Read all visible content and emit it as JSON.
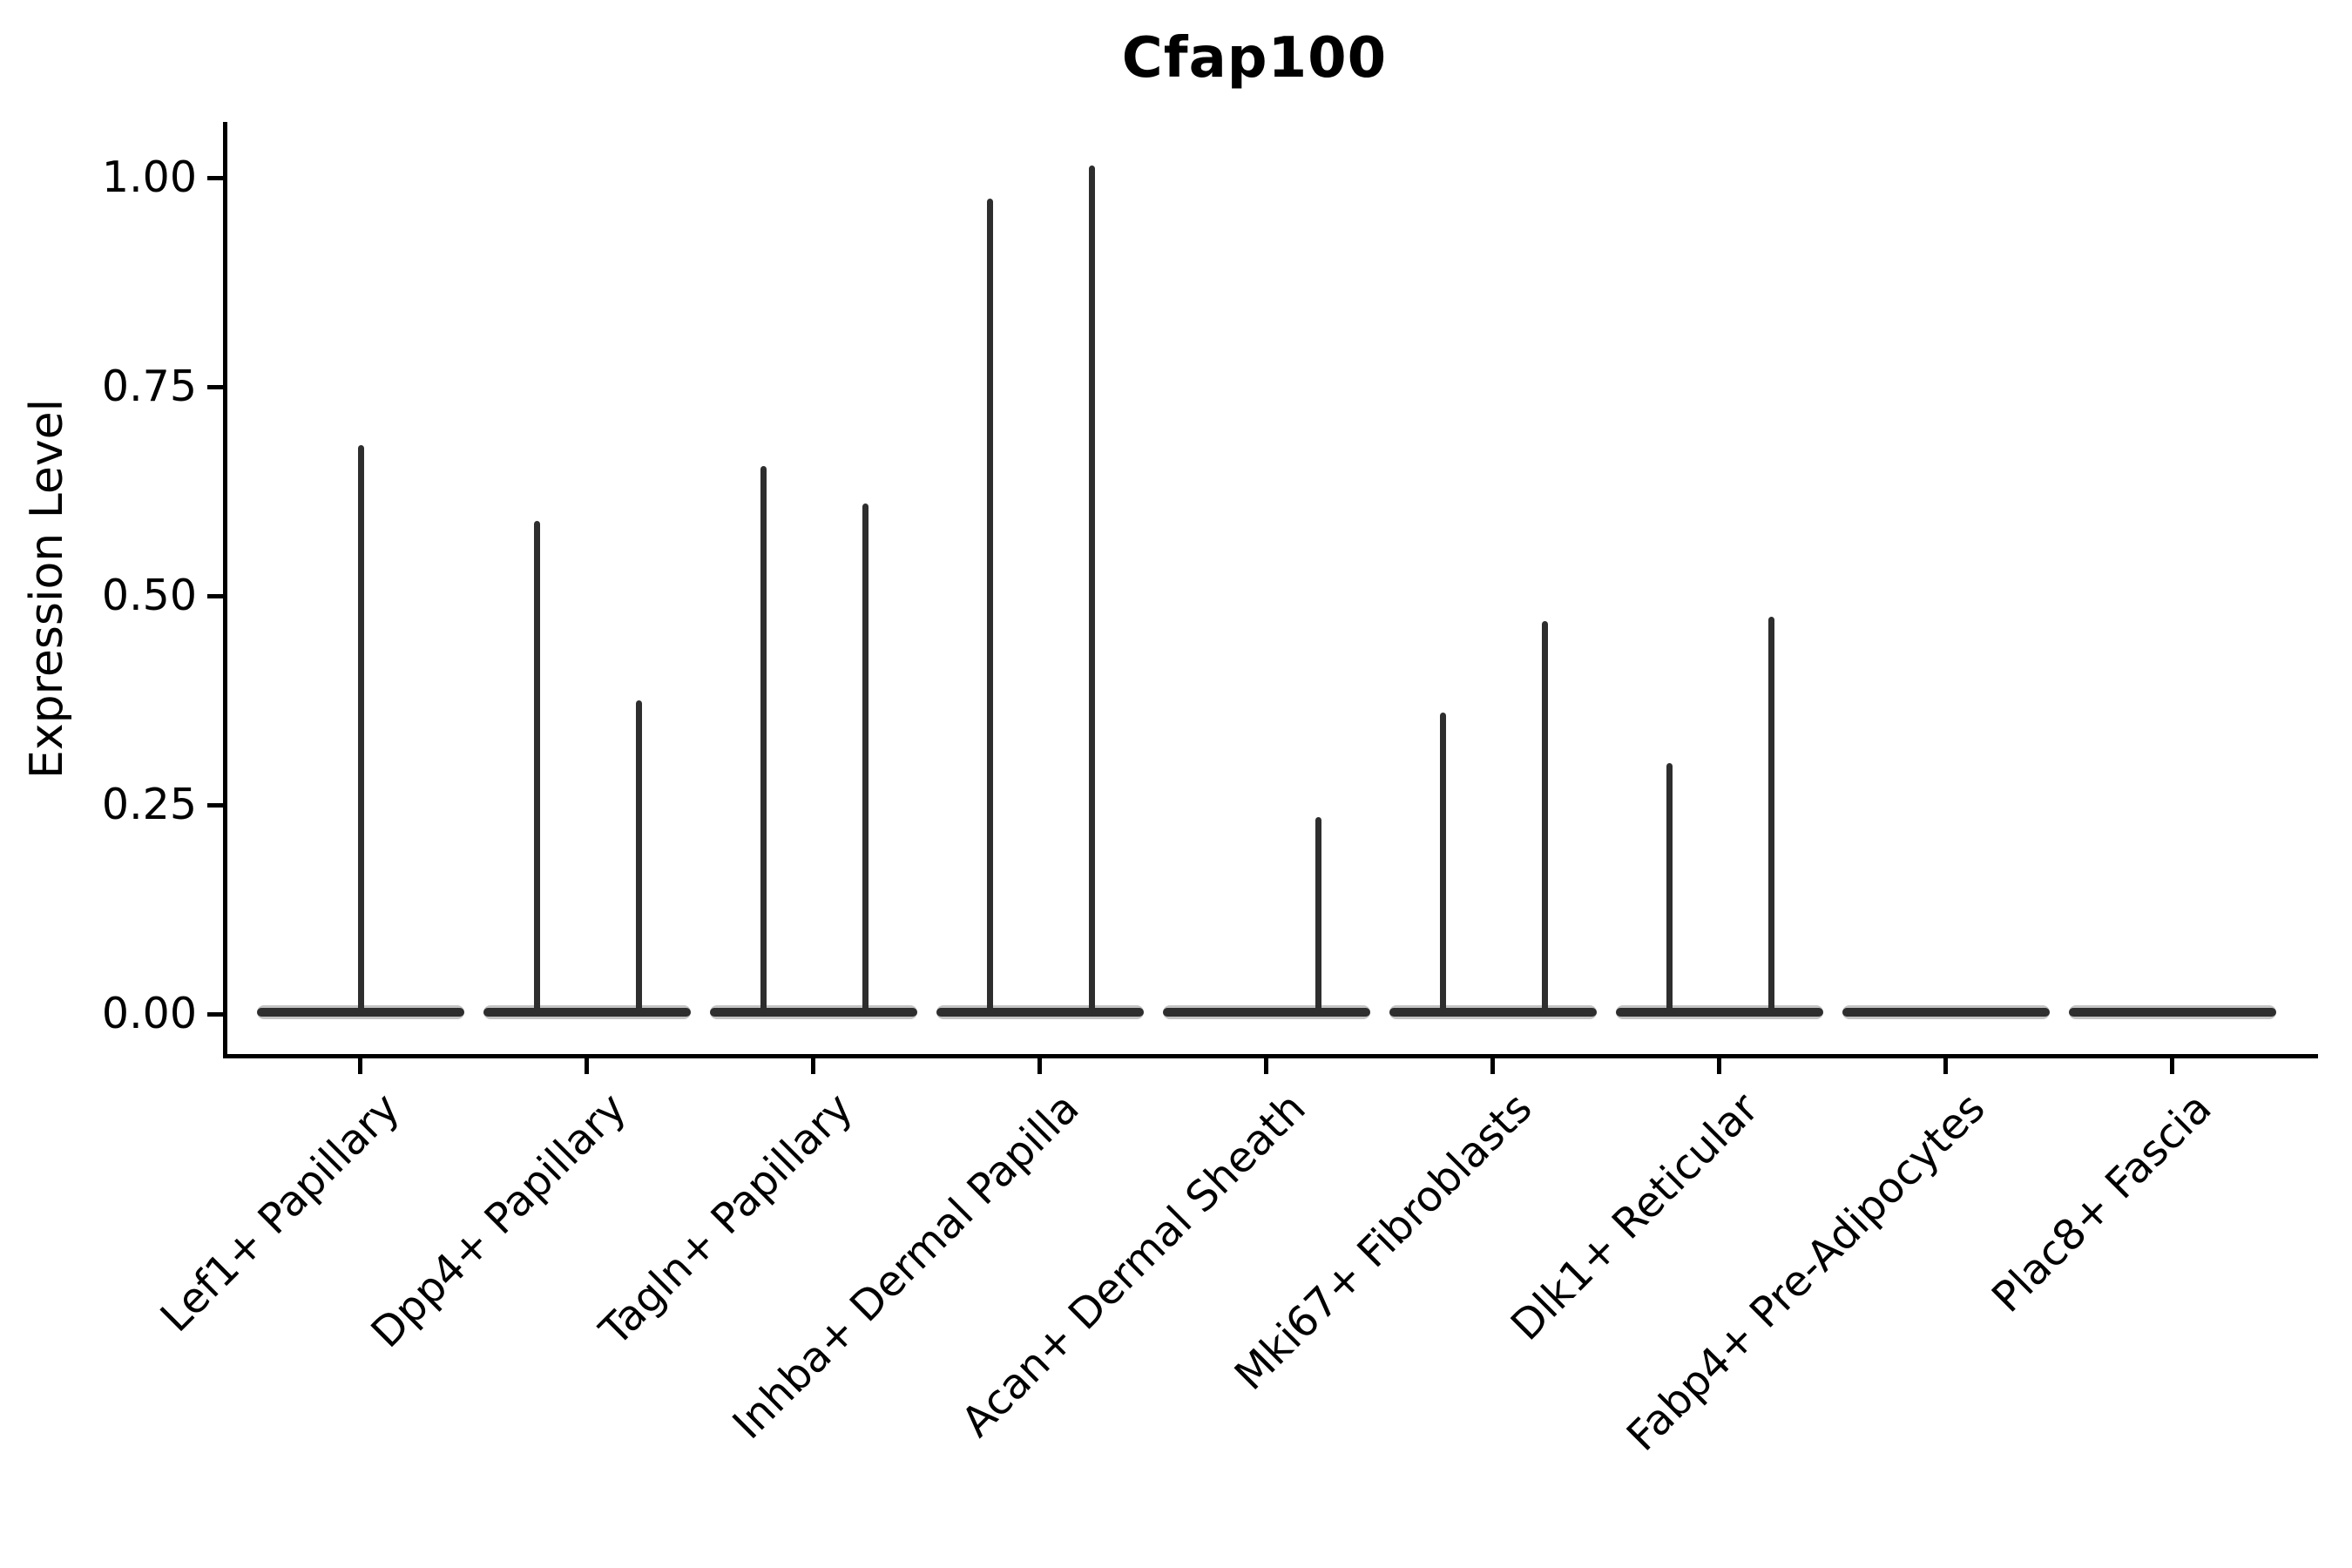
{
  "title": "Cfap100",
  "ylabel": "Expression Level",
  "colors": {
    "violin_line": "#2e2e2e",
    "violin_fill": "#c3c3c3",
    "axis": "#000000",
    "background": "#ffffff"
  },
  "chart_data": {
    "type": "violin",
    "title": "Cfap100",
    "xlabel": "",
    "ylabel": "Expression Level",
    "grid": false,
    "legend": "none",
    "ylim": [
      -0.02,
      1.07
    ],
    "y_ticks": [
      {
        "value": 0.0,
        "label": "0.00"
      },
      {
        "value": 0.25,
        "label": "0.25"
      },
      {
        "value": 0.5,
        "label": "0.50"
      },
      {
        "value": 0.75,
        "label": "0.75"
      },
      {
        "value": 1.0,
        "label": "1.00"
      }
    ],
    "categories": [
      "Lef1+ Papillary",
      "Dpp4+ Papillary",
      "Tagln+ Papillary",
      "Inhba+ Dermal Papilla",
      "Acan+ Dermal Sheath",
      "Mki67+ Fibroblasts",
      "Dlk1+ Reticular",
      "Fabp4+ Pre-Adipocytes",
      "Plac8+ Fascia"
    ],
    "violins": [
      {
        "category": "Lef1+ Papillary",
        "body_at_zero": true,
        "spikes": [
          {
            "side": "center",
            "max": 0.68
          }
        ]
      },
      {
        "category": "Dpp4+ Papillary",
        "body_at_zero": true,
        "spikes": [
          {
            "side": "left",
            "max": 0.59
          },
          {
            "side": "right",
            "max": 0.375
          }
        ]
      },
      {
        "category": "Tagln+ Papillary",
        "body_at_zero": true,
        "spikes": [
          {
            "side": "left",
            "max": 0.655
          },
          {
            "side": "right",
            "max": 0.61
          }
        ]
      },
      {
        "category": "Inhba+ Dermal Papilla",
        "body_at_zero": true,
        "spikes": [
          {
            "side": "left",
            "max": 0.975
          },
          {
            "side": "right",
            "max": 1.015
          }
        ]
      },
      {
        "category": "Acan+ Dermal Sheath",
        "body_at_zero": true,
        "spikes": [
          {
            "side": "right",
            "max": 0.235
          }
        ]
      },
      {
        "category": "Mki67+ Fibroblasts",
        "body_at_zero": true,
        "spikes": [
          {
            "side": "left",
            "max": 0.36
          },
          {
            "side": "right",
            "max": 0.47
          }
        ]
      },
      {
        "category": "Dlk1+ Reticular",
        "body_at_zero": true,
        "spikes": [
          {
            "side": "left",
            "max": 0.3
          },
          {
            "side": "right",
            "max": 0.475
          }
        ]
      },
      {
        "category": "Fabp4+ Pre-Adipocytes",
        "body_at_zero": true,
        "spikes": []
      },
      {
        "category": "Plac8+ Fascia",
        "body_at_zero": true,
        "spikes": []
      }
    ]
  }
}
